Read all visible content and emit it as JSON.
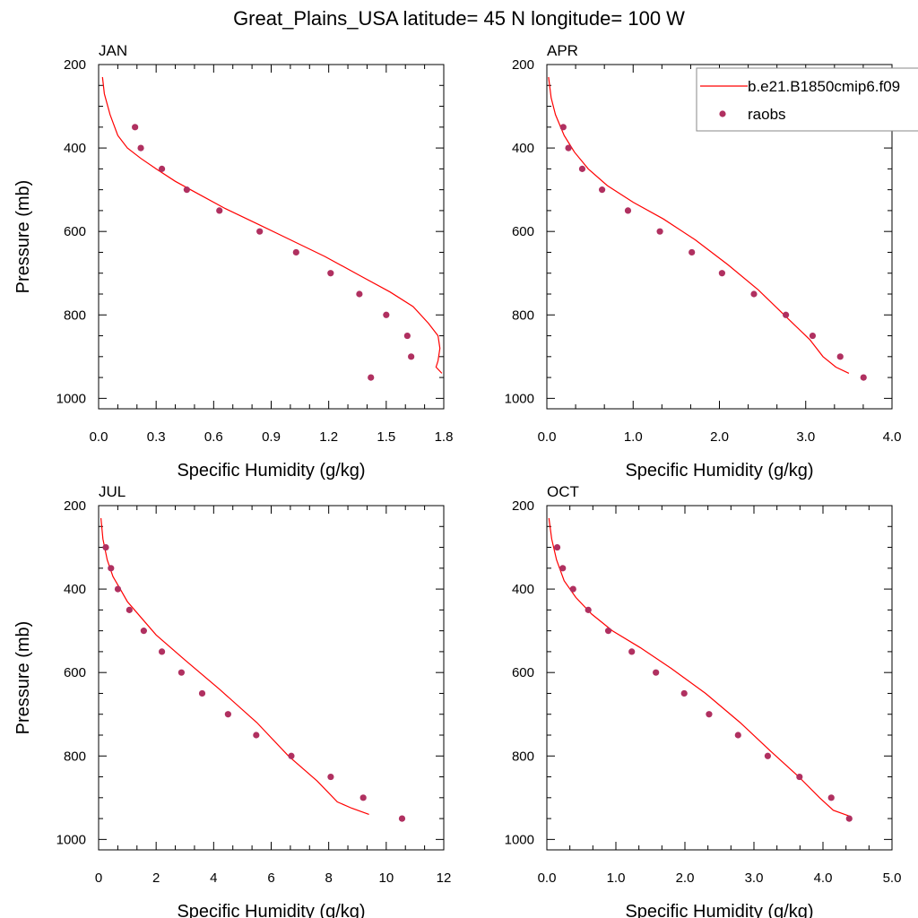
{
  "figure": {
    "title": "Great_Plains_USA  latitude= 45 N longitude= 100 W"
  },
  "legend": {
    "model_label": "b.e21.B1850cmip6.f09",
    "obs_label": "raobs",
    "placement": "top-right of APR panel"
  },
  "colors": {
    "model_line": "#ff0000",
    "obs_marker": "#b03060",
    "axis": "#000000"
  },
  "chart_data": [
    {
      "type": "line",
      "panel": "JAN",
      "title": "JAN",
      "xlabel": "Specific Humidity (g/kg)",
      "ylabel": "Pressure (mb)",
      "xlim": [
        0,
        1.8
      ],
      "ylim": [
        1025,
        200
      ],
      "xticks": [
        0,
        0.3,
        0.6,
        0.9,
        1.2,
        1.5,
        1.8
      ],
      "xtick_labels": [
        "0.0",
        "0.3",
        "0.6",
        "0.9",
        "1.2",
        "1.5",
        "1.8"
      ],
      "yticks": [
        200,
        400,
        600,
        800,
        1000
      ],
      "ytick_labels": [
        "200",
        "400",
        "600",
        "800",
        "1000"
      ],
      "series": [
        {
          "name": "b.e21.B1850cmip6.f09",
          "kind": "line",
          "x": [
            0.02,
            0.03,
            0.06,
            0.1,
            0.15,
            0.22,
            0.3,
            0.4,
            0.52,
            0.66,
            0.82,
            1.0,
            1.18,
            1.36,
            1.52,
            1.64,
            1.72,
            1.77,
            1.78,
            1.77,
            1.76,
            1.79
          ],
          "y": [
            230,
            270,
            320,
            370,
            400,
            425,
            450,
            480,
            510,
            545,
            580,
            620,
            660,
            705,
            745,
            780,
            820,
            850,
            880,
            910,
            925,
            940
          ]
        },
        {
          "name": "raobs",
          "kind": "scatter",
          "x": [
            0.19,
            0.22,
            0.33,
            0.46,
            0.63,
            0.84,
            1.03,
            1.21,
            1.36,
            1.5,
            1.61,
            1.63,
            1.42
          ],
          "y": [
            350,
            400,
            450,
            500,
            550,
            600,
            650,
            700,
            750,
            800,
            850,
            900,
            950
          ]
        }
      ]
    },
    {
      "type": "line",
      "panel": "APR",
      "title": "APR",
      "xlabel": "Specific Humidity (g/kg)",
      "ylabel": "",
      "xlim": [
        0,
        4
      ],
      "ylim": [
        1025,
        200
      ],
      "xticks": [
        0,
        1,
        2,
        3,
        4
      ],
      "xtick_labels": [
        "0.0",
        "1.0",
        "2.0",
        "3.0",
        "4.0"
      ],
      "yticks": [
        200,
        400,
        600,
        800,
        1000
      ],
      "ytick_labels": [
        "200",
        "400",
        "600",
        "800",
        "1000"
      ],
      "series": [
        {
          "name": "b.e21.B1850cmip6.f09",
          "kind": "line",
          "x": [
            0.02,
            0.05,
            0.1,
            0.2,
            0.32,
            0.48,
            0.7,
            1.0,
            1.35,
            1.72,
            2.1,
            2.45,
            2.8,
            3.05,
            3.2,
            3.35,
            3.5
          ],
          "y": [
            230,
            280,
            320,
            370,
            410,
            450,
            490,
            530,
            570,
            620,
            680,
            740,
            810,
            860,
            900,
            925,
            940
          ]
        },
        {
          "name": "raobs",
          "kind": "scatter",
          "x": [
            0.19,
            0.25,
            0.41,
            0.64,
            0.94,
            1.31,
            1.68,
            2.03,
            2.4,
            2.77,
            3.08,
            3.4,
            3.67
          ],
          "y": [
            350,
            400,
            450,
            500,
            550,
            600,
            650,
            700,
            750,
            800,
            850,
            900,
            950
          ]
        }
      ]
    },
    {
      "type": "line",
      "panel": "JUL",
      "title": "JUL",
      "xlabel": "Specific Humidity (g/kg)",
      "ylabel": "Pressure (mb)",
      "xlim": [
        0,
        12
      ],
      "ylim": [
        1025,
        200
      ],
      "xticks": [
        0,
        2,
        4,
        6,
        8,
        10,
        12
      ],
      "xtick_labels": [
        "0",
        "2",
        "4",
        "6",
        "8",
        "10",
        "12"
      ],
      "yticks": [
        200,
        400,
        600,
        800,
        1000
      ],
      "ytick_labels": [
        "200",
        "400",
        "600",
        "800",
        "1000"
      ],
      "series": [
        {
          "name": "b.e21.B1850cmip6.f09",
          "kind": "line",
          "x": [
            0.08,
            0.15,
            0.3,
            0.5,
            0.75,
            1.0,
            1.5,
            2.0,
            3.0,
            4.2,
            5.5,
            6.6,
            7.6,
            8.3,
            8.8,
            9.4
          ],
          "y": [
            230,
            280,
            330,
            370,
            400,
            430,
            470,
            510,
            570,
            640,
            720,
            800,
            860,
            910,
            925,
            940
          ]
        },
        {
          "name": "raobs",
          "kind": "scatter",
          "x": [
            0.25,
            0.43,
            0.67,
            1.07,
            1.57,
            2.2,
            2.88,
            3.6,
            4.5,
            5.48,
            6.7,
            8.07,
            9.2,
            10.55
          ],
          "y": [
            300,
            350,
            400,
            450,
            500,
            550,
            600,
            650,
            700,
            750,
            800,
            850,
            900,
            950
          ]
        }
      ]
    },
    {
      "type": "line",
      "panel": "OCT",
      "title": "OCT",
      "xlabel": "Specific Humidity (g/kg)",
      "ylabel": "",
      "xlim": [
        0,
        5
      ],
      "ylim": [
        1025,
        200
      ],
      "xticks": [
        0,
        1,
        2,
        3,
        4,
        5
      ],
      "xtick_labels": [
        "0.0",
        "1.0",
        "2.0",
        "3.0",
        "4.0",
        "5.0"
      ],
      "yticks": [
        200,
        400,
        600,
        800,
        1000
      ],
      "ytick_labels": [
        "200",
        "400",
        "600",
        "800",
        "1000"
      ],
      "series": [
        {
          "name": "b.e21.B1850cmip6.f09",
          "kind": "line",
          "x": [
            0.03,
            0.07,
            0.14,
            0.25,
            0.42,
            0.65,
            0.95,
            1.35,
            1.8,
            2.3,
            2.8,
            3.25,
            3.65,
            3.95,
            4.15,
            4.4
          ],
          "y": [
            230,
            280,
            330,
            380,
            420,
            460,
            500,
            540,
            590,
            650,
            720,
            790,
            850,
            900,
            930,
            945
          ]
        },
        {
          "name": "raobs",
          "kind": "scatter",
          "x": [
            0.15,
            0.23,
            0.38,
            0.6,
            0.89,
            1.23,
            1.58,
            1.99,
            2.35,
            2.77,
            3.2,
            3.66,
            4.12,
            4.38
          ],
          "y": [
            300,
            350,
            400,
            450,
            500,
            550,
            600,
            650,
            700,
            750,
            800,
            850,
            900,
            950
          ]
        }
      ]
    }
  ]
}
